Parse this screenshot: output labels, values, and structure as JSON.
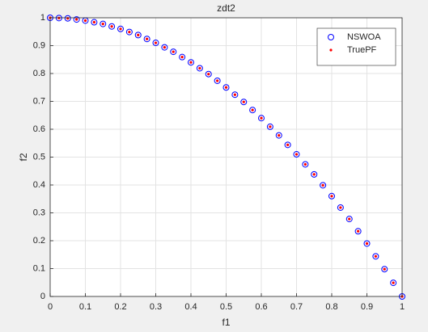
{
  "chart_data": {
    "type": "scatter",
    "title": "zdt2",
    "xlabel": "f1",
    "ylabel": "f2",
    "xlim": [
      0,
      1
    ],
    "ylim": [
      0,
      1
    ],
    "xticks": [
      0,
      0.1,
      0.2,
      0.3,
      0.4,
      0.5,
      0.6,
      0.7,
      0.8,
      0.9,
      1
    ],
    "yticks": [
      0,
      0.1,
      0.2,
      0.3,
      0.4,
      0.5,
      0.6,
      0.7,
      0.8,
      0.9,
      1
    ],
    "grid": true,
    "legend": "upper right",
    "series": [
      {
        "name": "NSWOA",
        "color": "#0000ff",
        "marker": "circle",
        "x": [
          0,
          0.025,
          0.05,
          0.075,
          0.1,
          0.125,
          0.15,
          0.175,
          0.2,
          0.225,
          0.25,
          0.275,
          0.3,
          0.325,
          0.35,
          0.375,
          0.4,
          0.425,
          0.45,
          0.475,
          0.5,
          0.525,
          0.55,
          0.575,
          0.6,
          0.625,
          0.65,
          0.675,
          0.7,
          0.725,
          0.75,
          0.775,
          0.8,
          0.825,
          0.85,
          0.875,
          0.9,
          0.925,
          0.95,
          0.975,
          1
        ],
        "values": [
          1,
          0.999,
          0.998,
          0.994,
          0.99,
          0.984,
          0.978,
          0.969,
          0.96,
          0.949,
          0.938,
          0.924,
          0.91,
          0.894,
          0.878,
          0.859,
          0.84,
          0.819,
          0.798,
          0.774,
          0.75,
          0.724,
          0.698,
          0.669,
          0.64,
          0.609,
          0.578,
          0.544,
          0.51,
          0.474,
          0.438,
          0.399,
          0.36,
          0.319,
          0.278,
          0.234,
          0.19,
          0.144,
          0.098,
          0.049,
          0
        ]
      },
      {
        "name": "TruePF",
        "color": "#ff0000",
        "marker": "dot",
        "x": [
          0,
          0.025,
          0.05,
          0.075,
          0.1,
          0.125,
          0.15,
          0.175,
          0.2,
          0.225,
          0.25,
          0.275,
          0.3,
          0.325,
          0.35,
          0.375,
          0.4,
          0.425,
          0.45,
          0.475,
          0.5,
          0.525,
          0.55,
          0.575,
          0.6,
          0.625,
          0.65,
          0.675,
          0.7,
          0.725,
          0.75,
          0.775,
          0.8,
          0.825,
          0.85,
          0.875,
          0.9,
          0.925,
          0.95,
          0.975,
          1
        ],
        "values": [
          1,
          0.999,
          0.998,
          0.994,
          0.99,
          0.984,
          0.978,
          0.969,
          0.96,
          0.949,
          0.938,
          0.924,
          0.91,
          0.894,
          0.878,
          0.859,
          0.84,
          0.819,
          0.798,
          0.774,
          0.75,
          0.724,
          0.698,
          0.669,
          0.64,
          0.609,
          0.578,
          0.544,
          0.51,
          0.474,
          0.438,
          0.399,
          0.36,
          0.319,
          0.278,
          0.234,
          0.19,
          0.144,
          0.098,
          0.049,
          0
        ]
      }
    ]
  }
}
